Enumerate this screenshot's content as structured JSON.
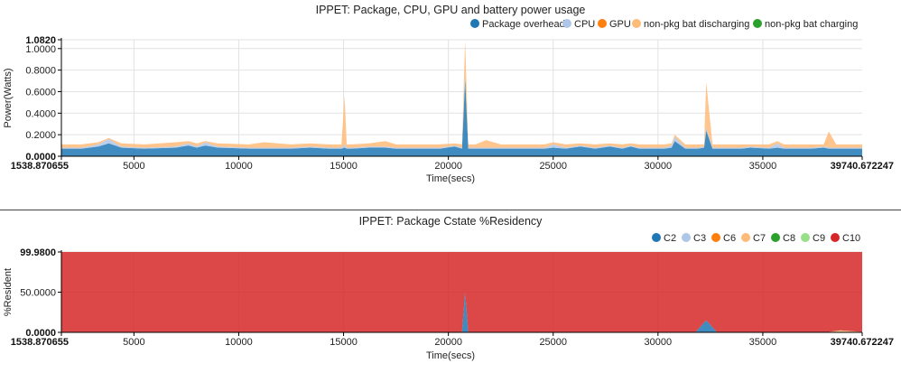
{
  "chart_data": [
    {
      "type": "area",
      "title": "IPPET: Package, CPU, GPU and battery power usage",
      "ylabel": "Power(Watts)",
      "xlabel": "Time(secs)",
      "xlim": [
        1538.870655,
        39740.672247
      ],
      "ylim": [
        0,
        1.082
      ],
      "x_tick_labels": [
        "1538.870655",
        "5000",
        "10000",
        "15000",
        "20000",
        "25000",
        "30000",
        "35000",
        "39740.672247"
      ],
      "y_tick_labels": [
        "0.0000",
        "0.2000",
        "0.4000",
        "0.6000",
        "0.8000",
        "1.0000",
        "1.0820"
      ],
      "legend_position": "top-right",
      "grid": true,
      "stacked": true,
      "x": [
        1538.87,
        2500,
        3300,
        3800,
        4400,
        5500,
        7000,
        7600,
        8000,
        8400,
        9000,
        10500,
        11200,
        12500,
        13400,
        14300,
        14900,
        15050,
        15150,
        15400,
        16200,
        17000,
        17500,
        18500,
        19600,
        20300,
        20650,
        20800,
        20950,
        21300,
        21800,
        22500,
        23500,
        24600,
        25000,
        25600,
        26300,
        27000,
        27700,
        28300,
        28700,
        29100,
        29500,
        30300,
        30650,
        30800,
        31300,
        31900,
        32200,
        32300,
        32600,
        33400,
        34000,
        34400,
        35300,
        35700,
        36000,
        36800,
        37300,
        37900,
        38150,
        38500,
        39000,
        39740.67
      ],
      "series": [
        {
          "name": "Package overhead",
          "color": "#1f77b4",
          "values": [
            0.07,
            0.07,
            0.09,
            0.12,
            0.08,
            0.07,
            0.08,
            0.1,
            0.08,
            0.1,
            0.08,
            0.07,
            0.07,
            0.07,
            0.08,
            0.07,
            0.07,
            0.08,
            0.07,
            0.07,
            0.08,
            0.08,
            0.07,
            0.07,
            0.07,
            0.09,
            0.07,
            0.72,
            0.07,
            0.07,
            0.07,
            0.07,
            0.07,
            0.07,
            0.08,
            0.07,
            0.09,
            0.07,
            0.09,
            0.07,
            0.09,
            0.07,
            0.07,
            0.07,
            0.08,
            0.14,
            0.07,
            0.07,
            0.08,
            0.24,
            0.07,
            0.07,
            0.07,
            0.08,
            0.07,
            0.08,
            0.07,
            0.07,
            0.07,
            0.08,
            0.07,
            0.07,
            0.07,
            0.07
          ]
        },
        {
          "name": "CPU",
          "color": "#aec7e8",
          "values": [
            0.01,
            0.01,
            0.02,
            0.04,
            0.01,
            0.01,
            0.01,
            0.02,
            0.01,
            0.03,
            0.01,
            0.01,
            0.01,
            0.01,
            0.01,
            0.01,
            0.01,
            0.03,
            0.01,
            0.01,
            0.01,
            0.01,
            0.01,
            0.01,
            0.01,
            0.01,
            0.01,
            0.05,
            0.01,
            0.01,
            0.01,
            0.01,
            0.01,
            0.01,
            0.03,
            0.01,
            0.01,
            0.01,
            0.01,
            0.01,
            0.01,
            0.01,
            0.01,
            0.01,
            0.02,
            0.04,
            0.01,
            0.01,
            0.01,
            0.03,
            0.01,
            0.01,
            0.01,
            0.01,
            0.01,
            0.04,
            0.01,
            0.01,
            0.01,
            0.01,
            0.01,
            0.01,
            0.01,
            0.01
          ]
        },
        {
          "name": "GPU",
          "color": "#ff7f0e",
          "values": [
            0,
            0,
            0,
            0,
            0,
            0,
            0,
            0,
            0,
            0,
            0,
            0,
            0,
            0,
            0,
            0,
            0,
            0,
            0,
            0,
            0,
            0,
            0,
            0,
            0,
            0,
            0,
            0,
            0,
            0,
            0,
            0,
            0,
            0,
            0,
            0,
            0,
            0,
            0,
            0,
            0,
            0,
            0,
            0,
            0,
            0,
            0,
            0,
            0,
            0,
            0,
            0,
            0,
            0,
            0,
            0,
            0,
            0,
            0,
            0,
            0,
            0,
            0,
            0
          ]
        },
        {
          "name": "non-pkg bat discharging",
          "color": "#ffbb78",
          "values": [
            0.03,
            0.03,
            0.02,
            0.01,
            0.03,
            0.03,
            0.04,
            0.02,
            0.03,
            0.01,
            0.03,
            0.03,
            0.05,
            0.03,
            0.03,
            0.03,
            0.03,
            0.45,
            0.03,
            0.03,
            0.03,
            0.05,
            0.03,
            0.03,
            0.03,
            0.02,
            0.03,
            0.31,
            0.03,
            0.03,
            0.07,
            0.03,
            0.03,
            0.03,
            0.02,
            0.03,
            0.02,
            0.03,
            0.02,
            0.03,
            0.02,
            0.03,
            0.03,
            0.03,
            0.02,
            0.02,
            0.03,
            0.03,
            0.02,
            0.42,
            0.03,
            0.03,
            0.03,
            0.02,
            0.03,
            0.02,
            0.03,
            0.03,
            0.03,
            0.02,
            0.15,
            0.03,
            0.03,
            0.03
          ]
        },
        {
          "name": "non-pkg bat charging",
          "color": "#2ca02c",
          "values": [
            0,
            0,
            0,
            0,
            0,
            0,
            0,
            0,
            0,
            0,
            0,
            0,
            0,
            0,
            0,
            0,
            0,
            0,
            0,
            0,
            0,
            0,
            0,
            0,
            0,
            0,
            0,
            0,
            0,
            0,
            0,
            0,
            0,
            0,
            0,
            0,
            0,
            0,
            0,
            0,
            0,
            0,
            0,
            0,
            0,
            0,
            0,
            0,
            0,
            0,
            0,
            0,
            0,
            0,
            0,
            0,
            0,
            0,
            0,
            0,
            0,
            0,
            0,
            0
          ]
        }
      ]
    },
    {
      "type": "area",
      "title": "IPPET: Package Cstate %Residency",
      "ylabel": "%Resident",
      "xlabel": "Time(secs)",
      "xlim": [
        1538.870655,
        39740.672247
      ],
      "ylim": [
        0,
        99.98
      ],
      "x_tick_labels": [
        "1538.870655",
        "5000",
        "10000",
        "15000",
        "20000",
        "25000",
        "30000",
        "35000",
        "39740.672247"
      ],
      "y_tick_labels": [
        "0.0000",
        "50.0000",
        "99.9800"
      ],
      "legend_position": "top-right",
      "grid": true,
      "stacked": true,
      "x": [
        1538.87,
        3800,
        8000,
        15000,
        20300,
        20650,
        20800,
        20950,
        21300,
        25000,
        30000,
        31800,
        32300,
        32800,
        35000,
        37500,
        38150,
        38700,
        39740.67
      ],
      "series": [
        {
          "name": "C2",
          "color": "#1f77b4",
          "values": [
            0.5,
            0.5,
            0.5,
            0.5,
            0.5,
            0.5,
            50,
            0.5,
            0.5,
            0.5,
            0.5,
            0.5,
            15,
            0.5,
            0.5,
            0.5,
            0.5,
            0.5,
            0.5
          ]
        },
        {
          "name": "C3",
          "color": "#aec7e8",
          "values": [
            0,
            0,
            0,
            0,
            0,
            0,
            0,
            0,
            0,
            0,
            0,
            0,
            0,
            0,
            0,
            0,
            0,
            0,
            0
          ]
        },
        {
          "name": "C6",
          "color": "#ff7f0e",
          "values": [
            0,
            0,
            0,
            0,
            0,
            0,
            0,
            0,
            0,
            0,
            0,
            0,
            0,
            0,
            0,
            0,
            0,
            0,
            0
          ]
        },
        {
          "name": "C7",
          "color": "#ffbb78",
          "values": [
            0,
            0,
            0,
            0,
            0,
            0,
            0,
            0,
            0,
            0,
            0,
            0,
            0,
            0,
            0,
            0,
            0,
            2,
            0
          ]
        },
        {
          "name": "C8",
          "color": "#2ca02c",
          "values": [
            0,
            0,
            0,
            0,
            0,
            0,
            0,
            0,
            0,
            0,
            0,
            0,
            0,
            0,
            0,
            0,
            0,
            0,
            0
          ]
        },
        {
          "name": "C9",
          "color": "#98df8a",
          "values": [
            0,
            0,
            0,
            0,
            0,
            0,
            0,
            0,
            0,
            0,
            0,
            0,
            0,
            0,
            0,
            0,
            0,
            0,
            0
          ]
        },
        {
          "name": "C10",
          "color": "#d62728",
          "values": [
            99.48,
            99.48,
            99.48,
            99.48,
            99.48,
            99.48,
            49.98,
            99.48,
            99.48,
            99.48,
            99.48,
            99.48,
            84.98,
            99.48,
            99.48,
            99.48,
            99.48,
            97.48,
            99.48
          ]
        }
      ]
    }
  ]
}
